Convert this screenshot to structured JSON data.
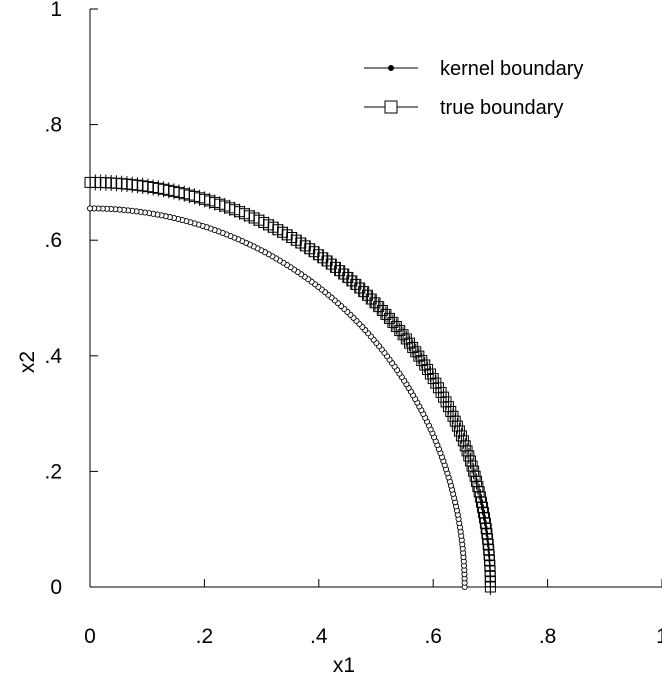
{
  "chart_data": {
    "type": "scatter",
    "xlabel": "x1",
    "ylabel": "x2",
    "xlim": [
      0,
      1
    ],
    "ylim": [
      0,
      1
    ],
    "x_ticks": [
      0,
      0.2,
      0.4,
      0.6,
      0.8,
      1
    ],
    "x_tick_labels": [
      "0",
      ".2",
      ".4",
      ".6",
      ".8",
      "1"
    ],
    "y_ticks": [
      0,
      0.2,
      0.4,
      0.6,
      0.8,
      1
    ],
    "y_tick_labels": [
      "0",
      ".2",
      ".4",
      ".6",
      ".8",
      "1"
    ],
    "grid": false,
    "legend_position": "top-right",
    "series": [
      {
        "name": "kernel boundary",
        "marker": "circle",
        "radius": 0.655,
        "count": 140
      },
      {
        "name": "true boundary",
        "marker": "square",
        "radius": 0.7,
        "count": 120
      }
    ]
  }
}
